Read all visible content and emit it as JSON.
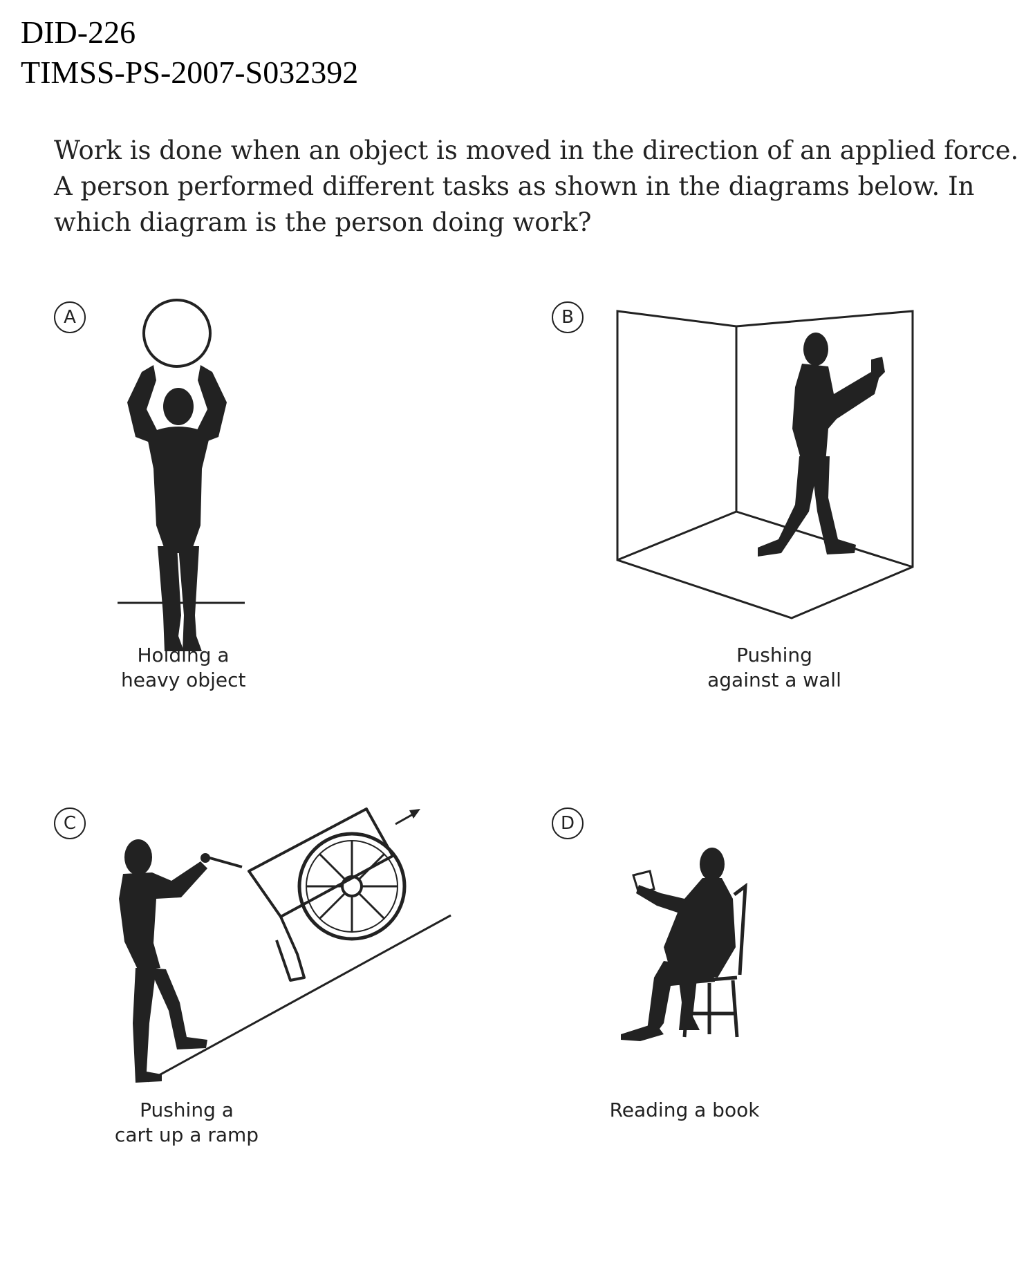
{
  "header": {
    "line1": "DID-226",
    "line2": "TIMSS-PS-2007-S032392"
  },
  "question": "Work is done when an object is moved in the direction of an applied force. A person performed different tasks as shown in the diagrams below. In which diagram is the person doing work?",
  "options": [
    {
      "letter": "A",
      "caption_line1": "Holding a",
      "caption_line2": "heavy object",
      "illustration": "person-holding-ball-overhead"
    },
    {
      "letter": "B",
      "caption_line1": "Pushing",
      "caption_line2": "against a wall",
      "illustration": "person-pushing-wall-in-room-corner"
    },
    {
      "letter": "C",
      "caption_line1": "Pushing a",
      "caption_line2": "cart up a ramp",
      "illustration": "person-pushing-cart-up-ramp"
    },
    {
      "letter": "D",
      "caption_line1": "Reading a book",
      "caption_line2": "",
      "illustration": "person-sitting-reading-book"
    }
  ]
}
